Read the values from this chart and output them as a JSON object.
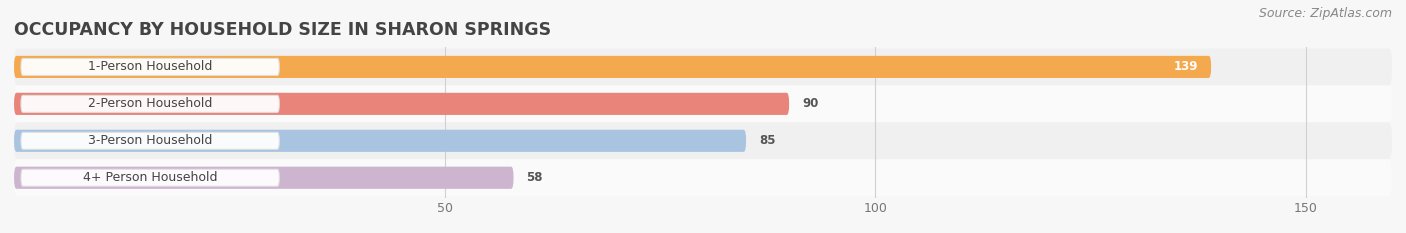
{
  "title": "OCCUPANCY BY HOUSEHOLD SIZE IN SHARON SPRINGS",
  "source": "Source: ZipAtlas.com",
  "categories": [
    "1-Person Household",
    "2-Person Household",
    "3-Person Household",
    "4+ Person Household"
  ],
  "values": [
    139,
    90,
    85,
    58
  ],
  "bar_colors": [
    "#f5a94e",
    "#e8847a",
    "#a8c4e0",
    "#cdb5d0"
  ],
  "background_color": "#f7f7f7",
  "row_bg_colors": [
    "#f0f0f0",
    "#fafafa",
    "#f0f0f0",
    "#fafafa"
  ],
  "xlim": [
    0,
    160
  ],
  "xticks": [
    50,
    100,
    150
  ],
  "title_fontsize": 12.5,
  "label_fontsize": 9,
  "value_fontsize": 8.5,
  "tick_fontsize": 9,
  "source_fontsize": 9
}
